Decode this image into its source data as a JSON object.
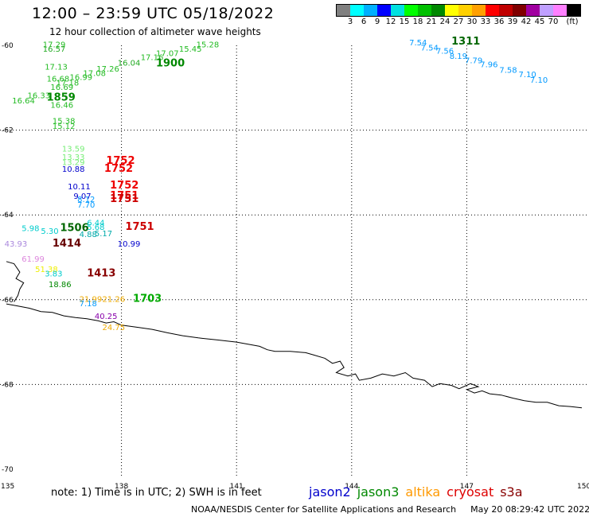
{
  "header": {
    "title": "12:00 – 23:59 UTC 05/18/2022",
    "subtitle": "12 hour collection of altimeter wave heights"
  },
  "legend": {
    "unit": "(ft)",
    "colors": [
      "#808080",
      "#00ffff",
      "#00bfff",
      "#0000ff",
      "#00ffff",
      "#00ff00",
      "#00c000",
      "#008000",
      "#ffff00",
      "#ffd700",
      "#ffa500",
      "#ff0000",
      "#c00000",
      "#800000",
      "#9400d3",
      "#ff00ff",
      "#ffb0ff",
      "#000000"
    ],
    "swatch_colors": [
      "#808080",
      "#00ffff",
      "#00b0ff",
      "#0000ff",
      "#00e0e0",
      "#00ff00",
      "#00c000",
      "#008800",
      "#ffff00",
      "#ffd000",
      "#ffa000",
      "#ff0000",
      "#c00000",
      "#800000",
      "#a000a0",
      "#c0a0ff",
      "#ff80ff",
      "#000000"
    ],
    "labels": [
      "3",
      "6",
      "9",
      "12",
      "15",
      "18",
      "21",
      "24",
      "27",
      "30",
      "33",
      "36",
      "39",
      "42",
      "45",
      "70"
    ]
  },
  "axes": {
    "lon_labels": [
      "135",
      "138",
      "141",
      "144",
      "147",
      "150"
    ],
    "lat_labels": [
      "-60",
      "-62",
      "-64",
      "-66",
      "-68",
      "-70"
    ],
    "lon_range": [
      135,
      150
    ],
    "lat_range": [
      -70,
      -60
    ]
  },
  "coastline": [
    [
      135.0,
      -66.1
    ],
    [
      135.3,
      -66.15
    ],
    [
      135.6,
      -66.2
    ],
    [
      135.9,
      -66.28
    ],
    [
      136.2,
      -66.3
    ],
    [
      136.5,
      -66.38
    ],
    [
      136.8,
      -66.42
    ],
    [
      137.1,
      -66.45
    ],
    [
      137.4,
      -66.5
    ],
    [
      137.6,
      -66.55
    ],
    [
      137.8,
      -66.52
    ],
    [
      138.0,
      -66.6
    ],
    [
      138.4,
      -66.65
    ],
    [
      138.8,
      -66.7
    ],
    [
      139.2,
      -66.78
    ],
    [
      139.6,
      -66.85
    ],
    [
      140.0,
      -66.9
    ],
    [
      140.5,
      -66.95
    ],
    [
      141.0,
      -67.0
    ],
    [
      141.3,
      -67.05
    ],
    [
      141.6,
      -67.1
    ],
    [
      141.8,
      -67.18
    ],
    [
      142.0,
      -67.22
    ],
    [
      142.4,
      -67.22
    ],
    [
      142.8,
      -67.25
    ],
    [
      143.0,
      -67.3
    ],
    [
      143.3,
      -67.38
    ],
    [
      143.5,
      -67.5
    ],
    [
      143.7,
      -67.45
    ],
    [
      143.8,
      -67.6
    ],
    [
      143.6,
      -67.72
    ],
    [
      143.9,
      -67.8
    ],
    [
      144.1,
      -67.75
    ],
    [
      144.2,
      -67.9
    ],
    [
      144.5,
      -67.85
    ],
    [
      144.8,
      -67.75
    ],
    [
      145.1,
      -67.8
    ],
    [
      145.4,
      -67.72
    ],
    [
      145.6,
      -67.85
    ],
    [
      145.9,
      -67.9
    ],
    [
      146.1,
      -68.05
    ],
    [
      146.3,
      -67.98
    ],
    [
      146.6,
      -68.02
    ],
    [
      146.8,
      -68.1
    ],
    [
      147.1,
      -67.98
    ],
    [
      147.3,
      -68.05
    ],
    [
      147.0,
      -68.12
    ],
    [
      147.2,
      -68.2
    ],
    [
      147.4,
      -68.15
    ],
    [
      147.6,
      -68.22
    ],
    [
      147.9,
      -68.25
    ],
    [
      148.2,
      -68.32
    ],
    [
      148.5,
      -68.38
    ],
    [
      148.8,
      -68.42
    ],
    [
      149.1,
      -68.42
    ],
    [
      149.4,
      -68.5
    ],
    [
      149.7,
      -68.52
    ],
    [
      150.0,
      -68.55
    ]
  ],
  "coast_west": [
    [
      135.0,
      -65.1
    ],
    [
      135.2,
      -65.15
    ],
    [
      135.35,
      -65.35
    ],
    [
      135.25,
      -65.5
    ],
    [
      135.45,
      -65.6
    ],
    [
      135.35,
      -65.75
    ],
    [
      135.3,
      -65.9
    ],
    [
      135.2,
      -66.05
    ]
  ],
  "measurements": [
    {
      "text": "17.29",
      "lon": 135.95,
      "lat": -60.05,
      "color": "#22bb22",
      "size": 10
    },
    {
      "text": "16.57",
      "lon": 135.95,
      "lat": -60.15,
      "color": "#22aa22",
      "size": 10
    },
    {
      "text": "17.13",
      "lon": 136.0,
      "lat": -60.57,
      "color": "#22bb22",
      "size": 10
    },
    {
      "text": "16.68",
      "lon": 136.05,
      "lat": -60.85,
      "color": "#22bb22",
      "size": 10
    },
    {
      "text": "16.64",
      "lon": 135.15,
      "lat": -61.37,
      "color": "#22bb22",
      "size": 10
    },
    {
      "text": "16.33",
      "lon": 135.55,
      "lat": -61.25,
      "color": "#22bb22",
      "size": 10
    },
    {
      "text": "16.69",
      "lon": 136.15,
      "lat": -61.05,
      "color": "#22bb22",
      "size": 10
    },
    {
      "text": "17.18",
      "lon": 136.3,
      "lat": -60.95,
      "color": "#22bb22",
      "size": 10
    },
    {
      "text": "16.99",
      "lon": 136.65,
      "lat": -60.82,
      "color": "#22bb22",
      "size": 10
    },
    {
      "text": "17.08",
      "lon": 137.0,
      "lat": -60.72,
      "color": "#22bb22",
      "size": 10
    },
    {
      "text": "17.26",
      "lon": 137.35,
      "lat": -60.62,
      "color": "#22bb22",
      "size": 10
    },
    {
      "text": "16.04",
      "lon": 137.9,
      "lat": -60.48,
      "color": "#22aa22",
      "size": 10
    },
    {
      "text": "17.16",
      "lon": 138.5,
      "lat": -60.35,
      "color": "#22bb22",
      "size": 10
    },
    {
      "text": "17.07",
      "lon": 138.9,
      "lat": -60.25,
      "color": "#22bb22",
      "size": 10
    },
    {
      "text": "15.45",
      "lon": 139.5,
      "lat": -60.15,
      "color": "#22bb22",
      "size": 10
    },
    {
      "text": "15.28",
      "lon": 139.95,
      "lat": -60.05,
      "color": "#22bb22",
      "size": 10
    },
    {
      "text": "1900",
      "lon": 138.9,
      "lat": -60.5,
      "color": "#008800",
      "size": 13
    },
    {
      "text": "1859",
      "lon": 136.05,
      "lat": -61.3,
      "color": "#008800",
      "size": 13
    },
    {
      "text": "16.46",
      "lon": 136.15,
      "lat": -61.47,
      "color": "#22bb22",
      "size": 10
    },
    {
      "text": "15.38",
      "lon": 136.2,
      "lat": -61.85,
      "color": "#22bb22",
      "size": 10
    },
    {
      "text": "15.12",
      "lon": 136.2,
      "lat": -61.97,
      "color": "#22bb22",
      "size": 10
    },
    {
      "text": "13.59",
      "lon": 136.45,
      "lat": -62.5,
      "color": "#77ee77",
      "size": 10
    },
    {
      "text": "13.33",
      "lon": 136.45,
      "lat": -62.7,
      "color": "#77ee77",
      "size": 10
    },
    {
      "text": "13.29",
      "lon": 136.45,
      "lat": -62.82,
      "color": "#77ee77",
      "size": 10
    },
    {
      "text": "10.88",
      "lon": 136.45,
      "lat": -62.98,
      "color": "#0000cc",
      "size": 10
    },
    {
      "text": "1752",
      "lon": 137.6,
      "lat": -62.8,
      "color": "#ee0000",
      "size": 13
    },
    {
      "text": "1752",
      "lon": 137.55,
      "lat": -62.98,
      "color": "#ee0000",
      "size": 13
    },
    {
      "text": "10.11",
      "lon": 136.6,
      "lat": -63.4,
      "color": "#0000cc",
      "size": 10
    },
    {
      "text": "1752",
      "lon": 137.7,
      "lat": -63.38,
      "color": "#ee0000",
      "size": 13
    },
    {
      "text": "9.07",
      "lon": 136.75,
      "lat": -63.62,
      "color": "#0000cc",
      "size": 10
    },
    {
      "text": "8.12",
      "lon": 136.85,
      "lat": -63.7,
      "color": "#0099ff",
      "size": 10
    },
    {
      "text": "7.70",
      "lon": 136.85,
      "lat": -63.83,
      "color": "#0099ff",
      "size": 10
    },
    {
      "text": "1751",
      "lon": 137.7,
      "lat": -63.62,
      "color": "#ee0000",
      "size": 13
    },
    {
      "text": "1751",
      "lon": 137.7,
      "lat": -63.7,
      "color": "#cc0000",
      "size": 13
    },
    {
      "text": "5.98",
      "lon": 135.4,
      "lat": -64.38,
      "color": "#00cccc",
      "size": 10
    },
    {
      "text": "1506",
      "lon": 136.4,
      "lat": -64.38,
      "color": "#006600",
      "size": 13
    },
    {
      "text": "5.30",
      "lon": 135.9,
      "lat": -64.45,
      "color": "#00cccc",
      "size": 10
    },
    {
      "text": "6.44",
      "lon": 137.1,
      "lat": -64.25,
      "color": "#00cccc",
      "size": 10
    },
    {
      "text": "5.68",
      "lon": 137.1,
      "lat": -64.35,
      "color": "#00cccc",
      "size": 10
    },
    {
      "text": "4.88",
      "lon": 136.9,
      "lat": -64.52,
      "color": "#00aaaa",
      "size": 10
    },
    {
      "text": "5.17",
      "lon": 137.3,
      "lat": -64.5,
      "color": "#00aaaa",
      "size": 10
    },
    {
      "text": "1751",
      "lon": 138.1,
      "lat": -64.35,
      "color": "#cc0000",
      "size": 13
    },
    {
      "text": "10.99",
      "lon": 137.9,
      "lat": -64.75,
      "color": "#0000cc",
      "size": 10
    },
    {
      "text": "43.93",
      "lon": 134.95,
      "lat": -64.75,
      "color": "#aa88dd",
      "size": 10
    },
    {
      "text": "1414",
      "lon": 136.2,
      "lat": -64.75,
      "color": "#660000",
      "size": 13
    },
    {
      "text": "61.99",
      "lon": 135.4,
      "lat": -65.1,
      "color": "#dd88dd",
      "size": 10
    },
    {
      "text": "51.38",
      "lon": 135.75,
      "lat": -65.35,
      "color": "#eeee00",
      "size": 10
    },
    {
      "text": "3.83",
      "lon": 136.0,
      "lat": -65.45,
      "color": "#00cccc",
      "size": 10
    },
    {
      "text": "1413",
      "lon": 137.1,
      "lat": -65.45,
      "color": "#880000",
      "size": 13
    },
    {
      "text": "18.86",
      "lon": 136.1,
      "lat": -65.7,
      "color": "#008800",
      "size": 10
    },
    {
      "text": "21.99",
      "lon": 136.9,
      "lat": -66.05,
      "color": "#eeaa00",
      "size": 10
    },
    {
      "text": "7.18",
      "lon": 136.9,
      "lat": -66.15,
      "color": "#0099ff",
      "size": 10
    },
    {
      "text": "21.26",
      "lon": 137.5,
      "lat": -66.05,
      "color": "#eeaa00",
      "size": 10
    },
    {
      "text": "1703",
      "lon": 138.3,
      "lat": -66.05,
      "color": "#00aa00",
      "size": 13
    },
    {
      "text": "40.25",
      "lon": 137.3,
      "lat": -66.45,
      "color": "#8800aa",
      "size": 10
    },
    {
      "text": "24.75",
      "lon": 137.5,
      "lat": -66.72,
      "color": "#eeaa00",
      "size": 10
    },
    {
      "text": "7.54",
      "lon": 145.5,
      "lat": -60.0,
      "color": "#0099ff",
      "size": 10
    },
    {
      "text": "1311",
      "lon": 146.6,
      "lat": -59.98,
      "color": "#006600",
      "size": 13
    },
    {
      "text": "7.54",
      "lon": 145.8,
      "lat": -60.12,
      "color": "#0099ff",
      "size": 10
    },
    {
      "text": "7.56",
      "lon": 146.2,
      "lat": -60.2,
      "color": "#0099ff",
      "size": 10
    },
    {
      "text": "8.19",
      "lon": 146.55,
      "lat": -60.32,
      "color": "#0099ff",
      "size": 10
    },
    {
      "text": "7.79",
      "lon": 146.95,
      "lat": -60.42,
      "color": "#0099ff",
      "size": 10
    },
    {
      "text": "7.96",
      "lon": 147.35,
      "lat": -60.52,
      "color": "#0099ff",
      "size": 10
    },
    {
      "text": "7.58",
      "lon": 147.85,
      "lat": -60.65,
      "color": "#0099ff",
      "size": 10
    },
    {
      "text": "7.10",
      "lon": 148.35,
      "lat": -60.75,
      "color": "#0099ff",
      "size": 10
    },
    {
      "text": "7.10",
      "lon": 148.65,
      "lat": -60.88,
      "color": "#0099ff",
      "size": 10
    }
  ],
  "footer": {
    "note": "note: 1) Time is in UTC; 2) SWH is in feet",
    "satellites": [
      {
        "name": "jason2",
        "color": "#0000cc"
      },
      {
        "name": "jason3",
        "color": "#008800"
      },
      {
        "name": "altika",
        "color": "#ff9900"
      },
      {
        "name": "cryosat",
        "color": "#dd0000"
      },
      {
        "name": "s3a",
        "color": "#880000"
      }
    ],
    "credit": "NOAA/NESDIS Center for Satellite Applications and Research",
    "generated": "May 20 08:29:42 UTC 2022"
  }
}
